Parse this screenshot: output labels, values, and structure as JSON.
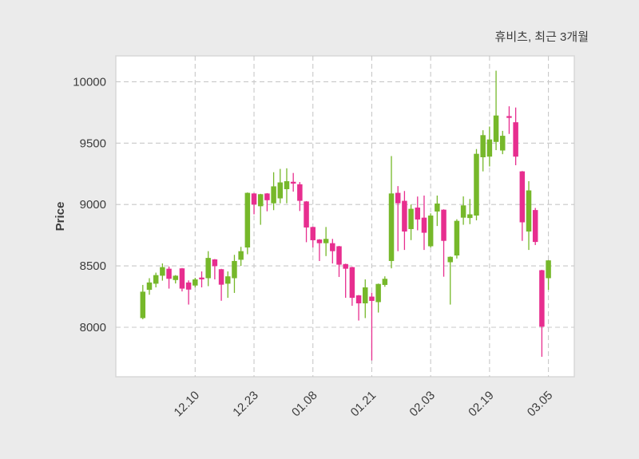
{
  "title": "휴비츠, 최근 3개월",
  "ylabel": "Price",
  "colors": {
    "up": "#76b82a",
    "down": "#e72e8f",
    "grid": "#c8c8c8",
    "spine": "#d8d8d8",
    "text": "#3c3c3c",
    "figure_bg": "#ebebeb",
    "plot_bg": "#ffffff"
  },
  "chart_data": {
    "type": "candlestick",
    "title": "휴비츠, 최근 3개월",
    "xlabel": "",
    "ylabel": "Price",
    "grid": true,
    "legend": "none",
    "ylim": [
      7600,
      10210
    ],
    "yticks": [
      8000,
      8500,
      9000,
      9500,
      10000
    ],
    "xtick_indices": [
      8,
      17,
      26,
      35,
      44,
      53,
      62
    ],
    "xtick_labels": [
      "12.10",
      "12.23",
      "01.08",
      "01.21",
      "02.03",
      "02.19",
      "03.05"
    ],
    "ohlc_note": "columns are [open, high, low, close]",
    "candles": [
      [
        8075,
        8345,
        8065,
        8290
      ],
      [
        8305,
        8400,
        8265,
        8365
      ],
      [
        8355,
        8445,
        8325,
        8425
      ],
      [
        8420,
        8520,
        8380,
        8490
      ],
      [
        8477,
        8495,
        8315,
        8395
      ],
      [
        8385,
        8425,
        8357,
        8420
      ],
      [
        8480,
        8483,
        8292,
        8315
      ],
      [
        8365,
        8382,
        8185,
        8307
      ],
      [
        8340,
        8403,
        8325,
        8390
      ],
      [
        8405,
        8455,
        8325,
        8398
      ],
      [
        8400,
        8620,
        8335,
        8565
      ],
      [
        8553,
        8556,
        8390,
        8498
      ],
      [
        8473,
        8476,
        8216,
        8347
      ],
      [
        8355,
        8455,
        8240,
        8415
      ],
      [
        8400,
        8590,
        8280,
        8540
      ],
      [
        8550,
        8655,
        8500,
        8620
      ],
      [
        8650,
        9098,
        8595,
        9095
      ],
      [
        9090,
        9093,
        8920,
        9000
      ],
      [
        8986,
        9087,
        8835,
        9084
      ],
      [
        9090,
        9093,
        8945,
        9035
      ],
      [
        9010,
        9263,
        8954,
        9148
      ],
      [
        9050,
        9290,
        9010,
        9180
      ],
      [
        9125,
        9295,
        9010,
        9190
      ],
      [
        9185,
        9257,
        9105,
        9183
      ],
      [
        9165,
        9183,
        8947,
        9030
      ],
      [
        9025,
        9028,
        8693,
        8813
      ],
      [
        8817,
        8820,
        8650,
        8709
      ],
      [
        8715,
        8718,
        8540,
        8685
      ],
      [
        8685,
        8817,
        8580,
        8720
      ],
      [
        8685,
        8720,
        8520,
        8620
      ],
      [
        8660,
        8663,
        8410,
        8510
      ],
      [
        8515,
        8518,
        8240,
        8477
      ],
      [
        8490,
        8493,
        8175,
        8240
      ],
      [
        8260,
        8263,
        8055,
        8195
      ],
      [
        8195,
        8390,
        8075,
        8325
      ],
      [
        8250,
        8282,
        7730,
        8215
      ],
      [
        8205,
        8356,
        8120,
        8353
      ],
      [
        8345,
        8415,
        8330,
        8395
      ],
      [
        8540,
        9395,
        8480,
        9090
      ],
      [
        9095,
        9150,
        8620,
        9010
      ],
      [
        9030,
        9110,
        8630,
        8780
      ],
      [
        8800,
        9000,
        8710,
        8965
      ],
      [
        8975,
        9065,
        8790,
        8878
      ],
      [
        8893,
        9073,
        8630,
        8770
      ],
      [
        8660,
        8928,
        8650,
        8910
      ],
      [
        8943,
        9073,
        8825,
        9008
      ],
      [
        8958,
        8961,
        8412,
        8704
      ],
      [
        8530,
        8577,
        8185,
        8574
      ],
      [
        8585,
        8880,
        8560,
        8867
      ],
      [
        8893,
        9066,
        8835,
        8993
      ],
      [
        8890,
        9045,
        8840,
        8920
      ],
      [
        8910,
        9452,
        8871,
        9413
      ],
      [
        9385,
        9605,
        9270,
        9565
      ],
      [
        9390,
        9635,
        9310,
        9530
      ],
      [
        9510,
        10090,
        9443,
        9725
      ],
      [
        9440,
        9600,
        9410,
        9560
      ],
      [
        9720,
        9800,
        9575,
        9715
      ],
      [
        9670,
        9790,
        9320,
        9390
      ],
      [
        9270,
        9273,
        8704,
        8855
      ],
      [
        8780,
        9190,
        8630,
        9115
      ],
      [
        8955,
        8972,
        8670,
        8695
      ],
      [
        8465,
        8468,
        7760,
        8005
      ],
      [
        8400,
        8547,
        8305,
        8545
      ]
    ]
  }
}
